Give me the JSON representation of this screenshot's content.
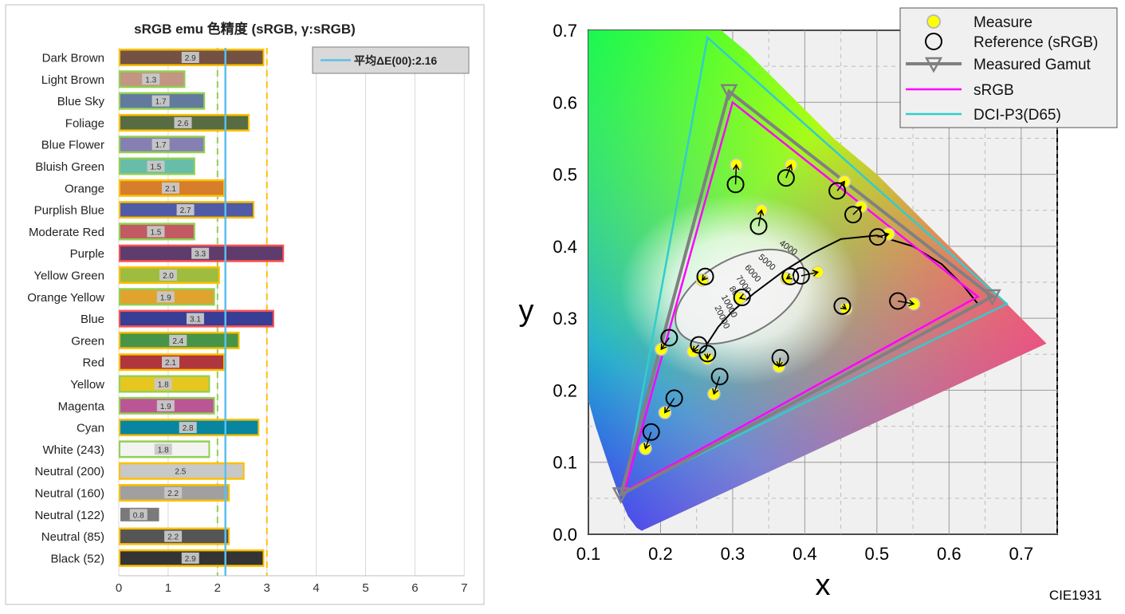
{
  "chart_data": [
    {
      "type": "bar",
      "orientation": "horizontal",
      "title": "sRGB emu 色精度 (sRGB, γ:sRGB)",
      "legend": {
        "label": "平均ΔE(00):2.16",
        "placement": "top-right"
      },
      "average": 2.16,
      "xlim": [
        0,
        7
      ],
      "xticks": [
        "0",
        "1",
        "2",
        "3",
        "4",
        "5",
        "6",
        "7"
      ],
      "reference_lines": [
        2,
        3
      ],
      "categories": [
        "Dark Brown",
        "Light Brown",
        "Blue Sky",
        "Foliage",
        "Blue Flower",
        "Bluish Green",
        "Orange",
        "Purplish Blue",
        "Moderate Red",
        "Purple",
        "Yellow Green",
        "Orange Yellow",
        "Blue",
        "Green",
        "Red",
        "Yellow",
        "Magenta",
        "Cyan",
        "White (243)",
        "Neutral (200)",
        "Neutral (160)",
        "Neutral (122)",
        "Neutral (85)",
        "Black (52)"
      ],
      "values": [
        2.9,
        1.3,
        1.7,
        2.6,
        1.7,
        1.5,
        2.1,
        2.7,
        1.5,
        3.3,
        2.0,
        1.9,
        3.1,
        2.4,
        2.1,
        1.8,
        1.9,
        2.8,
        1.8,
        2.5,
        2.2,
        0.8,
        2.2,
        2.9
      ],
      "value_labels": [
        "2.9",
        "1.3",
        "1.7",
        "2.6",
        "1.7",
        "1.5",
        "2.1",
        "2.7",
        "1.5",
        "3.3",
        "2.0",
        "1.9",
        "3.1",
        "2.4",
        "2.1",
        "1.8",
        "1.9",
        "2.8",
        "1.8",
        "2.5",
        "2.2",
        "0.8",
        "2.2",
        "2.9"
      ],
      "bar_colors": [
        "#735244",
        "#c29682",
        "#627a9d",
        "#576c43",
        "#8580b1",
        "#67bdaa",
        "#d67e2c",
        "#505ba6",
        "#c15a63",
        "#5e3c6c",
        "#9dbc40",
        "#e0a32e",
        "#383d96",
        "#469449",
        "#af363c",
        "#e7c71f",
        "#bb5695",
        "#0885a1",
        "#f3f3f2",
        "#c8c8c8",
        "#a0a0a0",
        "#7a7a7a",
        "#555555",
        "#343434"
      ],
      "border_colors": [
        "#ffc000",
        "#92d050",
        "#92d050",
        "#ffc000",
        "#92d050",
        "#92d050",
        "#ffc000",
        "#ffc000",
        "#92d050",
        "#ff5050",
        "#ffc000",
        "#92d050",
        "#ff5050",
        "#ffc000",
        "#ffc000",
        "#92d050",
        "#92d050",
        "#ffc000",
        "#92d050",
        "#ffc000",
        "#ffc000",
        "#ffffff",
        "#ffc000",
        "#ffc000"
      ]
    },
    {
      "type": "scatter",
      "xlabel": "x",
      "ylabel": "y",
      "xlim": [
        0.1,
        0.75
      ],
      "ylim": [
        0,
        0.7
      ],
      "xticks": [
        "0.1",
        "0.2",
        "0.3",
        "0.4",
        "0.5",
        "0.6",
        "0.7"
      ],
      "yticks": [
        "0.0",
        "0.1",
        "0.2",
        "0.3",
        "0.4",
        "0.5",
        "0.6",
        "0.7"
      ],
      "footer": "CIE1931",
      "legend_placement": "top-right",
      "legend": [
        "Measure",
        "Reference (sRGB)",
        "Measured Gamut",
        "sRGB",
        "DCI-P3(D65)"
      ],
      "planckian_labels": [
        "4000",
        "5000",
        "6000",
        "7000",
        "8000",
        "10000",
        "20000"
      ],
      "gamuts": {
        "measured": [
          [
            0.66,
            0.33
          ],
          [
            0.295,
            0.615
          ],
          [
            0.145,
            0.055
          ]
        ],
        "srgb": [
          [
            0.64,
            0.33
          ],
          [
            0.3,
            0.6
          ],
          [
            0.15,
            0.06
          ]
        ],
        "dci_p3": [
          [
            0.68,
            0.32
          ],
          [
            0.265,
            0.69
          ],
          [
            0.15,
            0.06
          ]
        ]
      },
      "points": [
        {
          "measure": [
            0.305,
            0.513
          ],
          "reference": [
            0.304,
            0.486
          ]
        },
        {
          "measure": [
            0.381,
            0.513
          ],
          "reference": [
            0.374,
            0.495
          ]
        },
        {
          "measure": [
            0.34,
            0.45
          ],
          "reference": [
            0.336,
            0.428
          ]
        },
        {
          "measure": [
            0.455,
            0.49
          ],
          "reference": [
            0.445,
            0.477
          ]
        },
        {
          "measure": [
            0.478,
            0.455
          ],
          "reference": [
            0.467,
            0.444
          ]
        },
        {
          "measure": [
            0.516,
            0.417
          ],
          "reference": [
            0.501,
            0.413
          ]
        },
        {
          "measure": [
            0.418,
            0.364
          ],
          "reference": [
            0.395,
            0.359
          ]
        },
        {
          "measure": [
            0.375,
            0.355
          ],
          "reference": [
            0.38,
            0.358
          ]
        },
        {
          "measure": [
            0.31,
            0.328
          ],
          "reference": [
            0.313,
            0.329
          ]
        },
        {
          "measure": [
            0.551,
            0.32
          ],
          "reference": [
            0.529,
            0.324
          ]
        },
        {
          "measure": [
            0.457,
            0.313
          ],
          "reference": [
            0.452,
            0.317
          ]
        },
        {
          "measure": [
            0.258,
            0.353
          ],
          "reference": [
            0.262,
            0.358
          ]
        },
        {
          "measure": [
            0.201,
            0.257
          ],
          "reference": [
            0.212,
            0.273
          ]
        },
        {
          "measure": [
            0.245,
            0.254
          ],
          "reference": [
            0.253,
            0.263
          ]
        },
        {
          "measure": [
            0.265,
            0.244
          ],
          "reference": [
            0.265,
            0.251
          ]
        },
        {
          "measure": [
            0.364,
            0.233
          ],
          "reference": [
            0.366,
            0.245
          ]
        },
        {
          "measure": [
            0.274,
            0.195
          ],
          "reference": [
            0.282,
            0.219
          ]
        },
        {
          "measure": [
            0.206,
            0.169
          ],
          "reference": [
            0.219,
            0.189
          ]
        },
        {
          "measure": [
            0.179,
            0.119
          ],
          "reference": [
            0.187,
            0.142
          ]
        }
      ]
    }
  ],
  "colors": {
    "average_line": "#5bc0eb",
    "threshold_line": "#ffc000",
    "threshold_line_green": "#92d050",
    "measure": "#ffff00",
    "measured_gamut": "#808080",
    "srgb": "#ff00ff",
    "dci_p3": "#33cccc"
  }
}
